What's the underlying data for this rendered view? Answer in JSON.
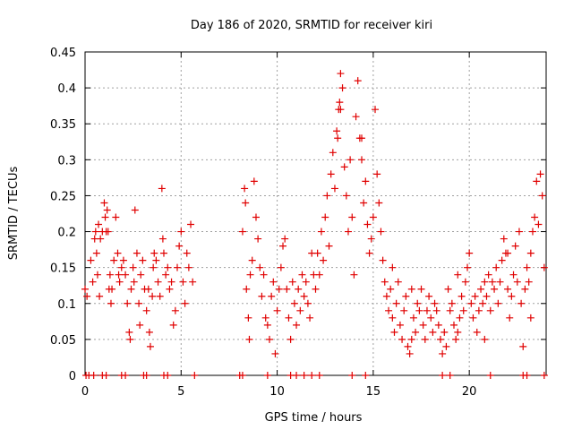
{
  "chart_data": {
    "type": "scatter",
    "title": "Day 186 of 2020, SRMTID for receiver kiri",
    "xlabel": "GPS time / hours",
    "ylabel": "SRMTID / TECUs",
    "xlim": [
      0,
      24
    ],
    "ylim": [
      0,
      0.45
    ],
    "grid": true,
    "x_ticks": [
      0,
      5,
      10,
      15,
      20
    ],
    "y_ticks": [
      0,
      0.05,
      0.1,
      0.15,
      0.2,
      0.25,
      0.3,
      0.35,
      0.4,
      0.45
    ],
    "x_tick_labels": [
      "0",
      "5",
      "10",
      "15",
      "20"
    ],
    "y_tick_labels": [
      "0",
      "0.05",
      "0.1",
      "0.15",
      "0.2",
      "0.25",
      "0.3",
      "0.35",
      "0.4",
      "0.45"
    ],
    "series": [
      {
        "name": "SRMTID",
        "color": "#e00000",
        "marker": "plus",
        "points": [
          [
            0.0,
            0.12
          ],
          [
            0.1,
            0.11
          ],
          [
            0.3,
            0.16
          ],
          [
            0.4,
            0.13
          ],
          [
            0.5,
            0.19
          ],
          [
            0.55,
            0.2
          ],
          [
            0.6,
            0.17
          ],
          [
            0.65,
            0.14
          ],
          [
            0.7,
            0.21
          ],
          [
            0.75,
            0.11
          ],
          [
            0.8,
            0.19
          ],
          [
            0.9,
            0.2
          ],
          [
            1.0,
            0.24
          ],
          [
            1.05,
            0.22
          ],
          [
            1.1,
            0.2
          ],
          [
            1.15,
            0.23
          ],
          [
            1.2,
            0.2
          ],
          [
            1.25,
            0.12
          ],
          [
            1.3,
            0.14
          ],
          [
            1.35,
            0.1
          ],
          [
            1.4,
            0.12
          ],
          [
            1.5,
            0.16
          ],
          [
            1.6,
            0.22
          ],
          [
            1.7,
            0.17
          ],
          [
            1.75,
            0.14
          ],
          [
            1.8,
            0.13
          ],
          [
            1.9,
            0.15
          ],
          [
            2.0,
            0.16
          ],
          [
            2.1,
            0.14
          ],
          [
            2.2,
            0.1
          ],
          [
            2.3,
            0.06
          ],
          [
            2.35,
            0.05
          ],
          [
            2.4,
            0.12
          ],
          [
            2.5,
            0.15
          ],
          [
            2.55,
            0.13
          ],
          [
            2.6,
            0.23
          ],
          [
            2.7,
            0.17
          ],
          [
            2.8,
            0.1
          ],
          [
            2.85,
            0.07
          ],
          [
            2.9,
            0.14
          ],
          [
            3.0,
            0.16
          ],
          [
            3.1,
            0.12
          ],
          [
            3.2,
            0.09
          ],
          [
            3.3,
            0.12
          ],
          [
            3.35,
            0.06
          ],
          [
            3.4,
            0.04
          ],
          [
            3.5,
            0.11
          ],
          [
            3.55,
            0.15
          ],
          [
            3.6,
            0.17
          ],
          [
            3.7,
            0.16
          ],
          [
            3.8,
            0.13
          ],
          [
            3.9,
            0.11
          ],
          [
            4.0,
            0.26
          ],
          [
            4.05,
            0.19
          ],
          [
            4.1,
            0.17
          ],
          [
            4.2,
            0.14
          ],
          [
            4.3,
            0.15
          ],
          [
            4.4,
            0.12
          ],
          [
            4.5,
            0.13
          ],
          [
            4.6,
            0.07
          ],
          [
            4.7,
            0.09
          ],
          [
            4.8,
            0.15
          ],
          [
            4.9,
            0.18
          ],
          [
            5.0,
            0.2
          ],
          [
            5.1,
            0.13
          ],
          [
            5.2,
            0.1
          ],
          [
            5.3,
            0.17
          ],
          [
            5.4,
            0.15
          ],
          [
            5.5,
            0.21
          ],
          [
            5.6,
            0.13
          ],
          [
            8.2,
            0.2
          ],
          [
            8.3,
            0.26
          ],
          [
            8.35,
            0.24
          ],
          [
            8.4,
            0.12
          ],
          [
            8.5,
            0.08
          ],
          [
            8.55,
            0.05
          ],
          [
            8.6,
            0.14
          ],
          [
            8.7,
            0.16
          ],
          [
            8.8,
            0.27
          ],
          [
            8.9,
            0.22
          ],
          [
            9.0,
            0.19
          ],
          [
            9.1,
            0.15
          ],
          [
            9.2,
            0.11
          ],
          [
            9.3,
            0.14
          ],
          [
            9.4,
            0.08
          ],
          [
            9.5,
            0.07
          ],
          [
            9.6,
            0.05
          ],
          [
            9.7,
            0.11
          ],
          [
            9.8,
            0.13
          ],
          [
            9.9,
            0.03
          ],
          [
            10.0,
            0.09
          ],
          [
            10.1,
            0.12
          ],
          [
            10.2,
            0.15
          ],
          [
            10.3,
            0.18
          ],
          [
            10.4,
            0.19
          ],
          [
            10.5,
            0.12
          ],
          [
            10.6,
            0.08
          ],
          [
            10.7,
            0.05
          ],
          [
            10.8,
            0.13
          ],
          [
            10.9,
            0.1
          ],
          [
            11.0,
            0.07
          ],
          [
            11.1,
            0.12
          ],
          [
            11.2,
            0.09
          ],
          [
            11.3,
            0.14
          ],
          [
            11.4,
            0.11
          ],
          [
            11.5,
            0.13
          ],
          [
            11.6,
            0.1
          ],
          [
            11.7,
            0.08
          ],
          [
            11.8,
            0.17
          ],
          [
            11.9,
            0.14
          ],
          [
            12.0,
            0.12
          ],
          [
            12.1,
            0.17
          ],
          [
            12.2,
            0.14
          ],
          [
            12.3,
            0.2
          ],
          [
            12.4,
            0.16
          ],
          [
            12.5,
            0.22
          ],
          [
            12.6,
            0.25
          ],
          [
            12.7,
            0.18
          ],
          [
            12.8,
            0.28
          ],
          [
            12.9,
            0.31
          ],
          [
            13.0,
            0.26
          ],
          [
            13.1,
            0.34
          ],
          [
            13.15,
            0.33
          ],
          [
            13.2,
            0.37
          ],
          [
            13.25,
            0.38
          ],
          [
            13.3,
            0.42
          ],
          [
            13.4,
            0.4
          ],
          [
            13.5,
            0.29
          ],
          [
            13.6,
            0.25
          ],
          [
            13.7,
            0.2
          ],
          [
            13.8,
            0.3
          ],
          [
            13.9,
            0.22
          ],
          [
            14.0,
            0.14
          ],
          [
            14.1,
            0.36
          ],
          [
            14.2,
            0.41
          ],
          [
            14.3,
            0.33
          ],
          [
            14.4,
            0.3
          ],
          [
            14.5,
            0.24
          ],
          [
            14.6,
            0.27
          ],
          [
            14.7,
            0.21
          ],
          [
            14.8,
            0.17
          ],
          [
            14.9,
            0.19
          ],
          [
            15.0,
            0.22
          ],
          [
            15.1,
            0.37
          ],
          [
            15.2,
            0.28
          ],
          [
            15.3,
            0.24
          ],
          [
            15.4,
            0.2
          ],
          [
            15.5,
            0.16
          ],
          [
            15.6,
            0.13
          ],
          [
            15.7,
            0.11
          ],
          [
            15.8,
            0.09
          ],
          [
            15.9,
            0.12
          ],
          [
            16.0,
            0.08
          ],
          [
            16.1,
            0.06
          ],
          [
            16.2,
            0.1
          ],
          [
            16.3,
            0.13
          ],
          [
            16.4,
            0.07
          ],
          [
            16.5,
            0.05
          ],
          [
            16.6,
            0.09
          ],
          [
            16.7,
            0.11
          ],
          [
            16.8,
            0.04
          ],
          [
            16.9,
            0.03
          ],
          [
            17.0,
            0.05
          ],
          [
            17.1,
            0.08
          ],
          [
            17.2,
            0.06
          ],
          [
            17.3,
            0.1
          ],
          [
            17.4,
            0.09
          ],
          [
            17.5,
            0.12
          ],
          [
            17.6,
            0.07
          ],
          [
            17.7,
            0.05
          ],
          [
            17.8,
            0.09
          ],
          [
            17.9,
            0.11
          ],
          [
            18.0,
            0.08
          ],
          [
            18.1,
            0.06
          ],
          [
            18.2,
            0.1
          ],
          [
            18.3,
            0.09
          ],
          [
            18.4,
            0.07
          ],
          [
            18.5,
            0.05
          ],
          [
            18.6,
            0.03
          ],
          [
            18.7,
            0.06
          ],
          [
            18.8,
            0.04
          ],
          [
            18.9,
            0.12
          ],
          [
            19.0,
            0.09
          ],
          [
            19.1,
            0.1
          ],
          [
            19.2,
            0.07
          ],
          [
            19.3,
            0.05
          ],
          [
            19.4,
            0.06
          ],
          [
            19.5,
            0.08
          ],
          [
            19.6,
            0.11
          ],
          [
            19.7,
            0.09
          ],
          [
            19.8,
            0.13
          ],
          [
            19.9,
            0.15
          ],
          [
            20.0,
            0.17
          ],
          [
            20.1,
            0.1
          ],
          [
            20.2,
            0.08
          ],
          [
            20.3,
            0.11
          ],
          [
            20.4,
            0.06
          ],
          [
            20.5,
            0.09
          ],
          [
            20.6,
            0.12
          ],
          [
            20.7,
            0.1
          ],
          [
            20.8,
            0.13
          ],
          [
            20.9,
            0.11
          ],
          [
            21.0,
            0.14
          ],
          [
            21.1,
            0.09
          ],
          [
            21.2,
            0.13
          ],
          [
            21.3,
            0.12
          ],
          [
            21.4,
            0.15
          ],
          [
            21.5,
            0.1
          ],
          [
            21.6,
            0.13
          ],
          [
            21.7,
            0.16
          ],
          [
            21.8,
            0.19
          ],
          [
            21.9,
            0.17
          ],
          [
            22.0,
            0.12
          ],
          [
            22.1,
            0.08
          ],
          [
            22.2,
            0.11
          ],
          [
            22.3,
            0.14
          ],
          [
            22.4,
            0.18
          ],
          [
            22.5,
            0.13
          ],
          [
            22.6,
            0.2
          ],
          [
            22.7,
            0.1
          ],
          [
            22.8,
            0.04
          ],
          [
            22.9,
            0.12
          ],
          [
            23.0,
            0.15
          ],
          [
            23.1,
            0.13
          ],
          [
            23.2,
            0.17
          ],
          [
            23.3,
            0.2
          ],
          [
            23.4,
            0.22
          ],
          [
            23.5,
            0.27
          ],
          [
            23.6,
            0.21
          ],
          [
            23.7,
            0.28
          ],
          [
            23.8,
            0.25
          ],
          [
            23.9,
            0.15
          ],
          [
            23.2,
            0.08
          ],
          [
            22.0,
            0.17
          ],
          [
            20.8,
            0.05
          ],
          [
            19.4,
            0.14
          ],
          [
            17.0,
            0.12
          ],
          [
            16.0,
            0.15
          ],
          [
            14.4,
            0.33
          ],
          [
            13.3,
            0.37
          ]
        ],
        "zero_points": [
          0.05,
          0.2,
          0.45,
          0.9,
          1.1,
          1.9,
          2.1,
          3.05,
          3.2,
          4.1,
          4.3,
          5.7,
          8.05,
          8.2,
          9.5,
          10.7,
          11.0,
          11.4,
          11.8,
          12.2,
          13.9,
          14.6,
          18.6,
          19.0,
          21.1,
          22.8,
          23.0,
          23.9
        ]
      }
    ]
  }
}
